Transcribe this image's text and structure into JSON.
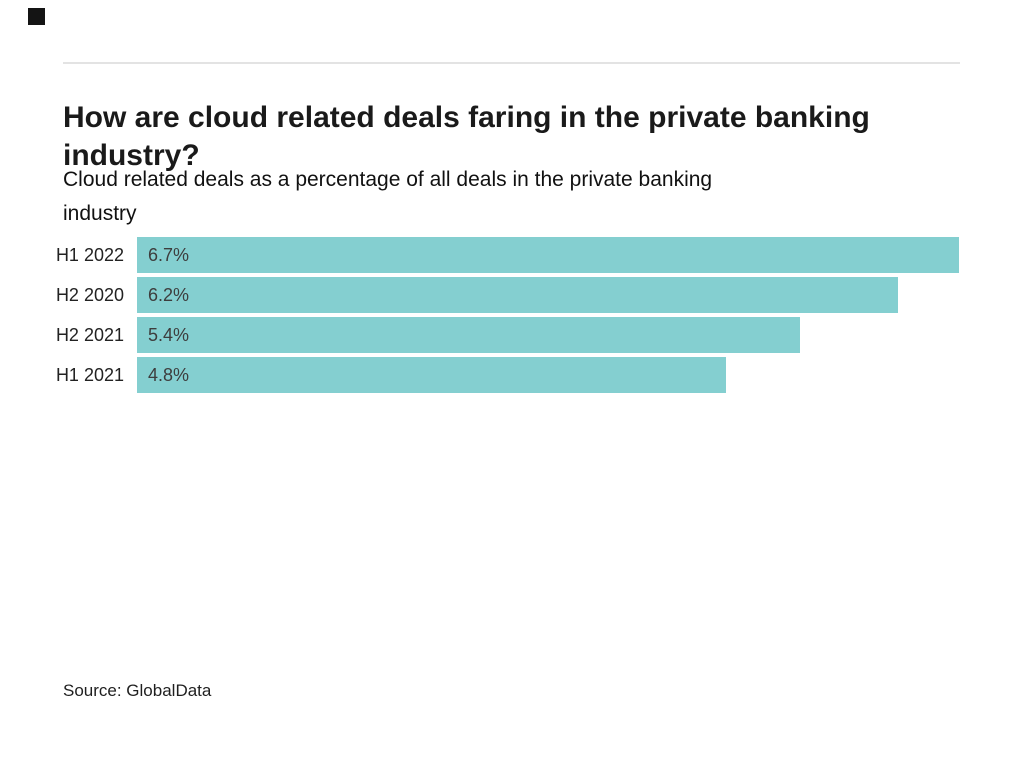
{
  "page": {
    "background": "#ffffff",
    "accent_color": "#84CFD0",
    "logo_color": "#141414"
  },
  "header": {
    "title": "How are cloud related deals faring in the private banking industry?",
    "title_lines": [
      "How are cloud related deals faring in the private banking",
      "industry?"
    ],
    "subtitle": "Cloud related deals as a percentage of all deals in the private banking industry",
    "subtitle_lines": [
      "Cloud related deals as a percentage of all deals in the private banking",
      "industry"
    ]
  },
  "chart_data": {
    "type": "bar",
    "orientation": "horizontal",
    "title": "How are cloud related deals faring in the private banking industry?",
    "subtitle": "Cloud related deals as a percentage of all deals in the private banking industry",
    "categories": [
      "H1 2022",
      "H2 2020",
      "H2 2021",
      "H1 2021"
    ],
    "values": [
      6.7,
      6.2,
      5.4,
      4.8
    ],
    "value_labels": [
      "6.7%",
      "6.2%",
      "5.4%",
      "4.8%"
    ],
    "xlabel": "",
    "ylabel": "",
    "xlim": [
      0,
      6.7
    ],
    "bar_color": "#84CFD0",
    "grid": false,
    "legend": false,
    "value_label_position": "inside-left",
    "category_label_position": "left"
  },
  "footer": {
    "source": "Source: GlobalData"
  }
}
